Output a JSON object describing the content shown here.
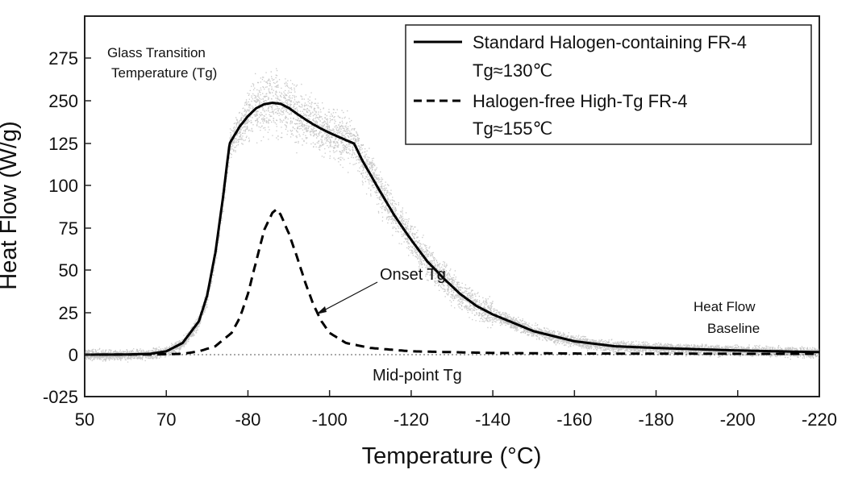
{
  "chart_data": {
    "type": "line",
    "title": "",
    "xlabel": "Temperature (°C)",
    "ylabel": "Heat Flow (W/g)",
    "x_ticks": [
      "50",
      "70",
      "-80",
      "-100",
      "-120",
      "-140",
      "-160",
      "-180",
      "-200",
      "-220"
    ],
    "y_ticks": [
      "-025",
      "0",
      "25",
      "50",
      "75",
      "100",
      "125",
      "250",
      "275"
    ],
    "grid": false,
    "legend_position": "top-right",
    "series": [
      {
        "name": "Standard Halogen-containing FR-4",
        "legend_sublabel": "Tg≈130℃",
        "style": "solid",
        "points": [
          [
            0,
            0
          ],
          [
            0.5,
            0.1
          ],
          [
            0.8,
            0.5
          ],
          [
            1.0,
            2
          ],
          [
            1.2,
            7
          ],
          [
            1.4,
            20
          ],
          [
            1.5,
            35
          ],
          [
            1.6,
            60
          ],
          [
            1.7,
            95
          ],
          [
            1.8,
            135
          ],
          [
            1.9,
            175
          ],
          [
            2.0,
            205
          ],
          [
            2.1,
            228
          ],
          [
            2.2,
            240
          ],
          [
            2.3,
            244
          ],
          [
            2.4,
            241
          ],
          [
            2.5,
            229
          ],
          [
            2.6,
            212
          ],
          [
            2.7,
            196
          ],
          [
            2.8,
            181
          ],
          [
            2.9,
            168
          ],
          [
            3.0,
            156
          ],
          [
            3.2,
            135
          ],
          [
            3.4,
            115
          ],
          [
            3.6,
            98
          ],
          [
            3.8,
            82
          ],
          [
            4.0,
            68
          ],
          [
            4.2,
            55
          ],
          [
            4.4,
            45
          ],
          [
            4.6,
            36
          ],
          [
            4.8,
            29
          ],
          [
            5.0,
            24
          ],
          [
            5.5,
            14
          ],
          [
            6.0,
            8
          ],
          [
            6.5,
            5
          ],
          [
            7.0,
            4
          ],
          [
            8.0,
            2.5
          ],
          [
            9.0,
            1.5
          ]
        ]
      },
      {
        "name": "Halogen-free High-Tg FR-4",
        "legend_sublabel": "Tg≈155℃",
        "style": "dashed",
        "points": [
          [
            0,
            0
          ],
          [
            0.8,
            0.1
          ],
          [
            1.2,
            0.5
          ],
          [
            1.4,
            2
          ],
          [
            1.6,
            5
          ],
          [
            1.8,
            13
          ],
          [
            1.9,
            22
          ],
          [
            2.0,
            36
          ],
          [
            2.1,
            55
          ],
          [
            2.2,
            74
          ],
          [
            2.3,
            84
          ],
          [
            2.35,
            86
          ],
          [
            2.4,
            83
          ],
          [
            2.5,
            72
          ],
          [
            2.6,
            58
          ],
          [
            2.7,
            43
          ],
          [
            2.8,
            30
          ],
          [
            2.9,
            20
          ],
          [
            3.0,
            13
          ],
          [
            3.2,
            7
          ],
          [
            3.5,
            4
          ],
          [
            4.0,
            2
          ],
          [
            5.0,
            1
          ],
          [
            6.0,
            0.7
          ],
          [
            7.0,
            0.6
          ],
          [
            8.0,
            0.5
          ],
          [
            9.0,
            0.5
          ]
        ]
      }
    ],
    "annotations": [
      {
        "text_lines": [
          "Glass Transition",
          "Temperature (Tg)"
        ]
      },
      {
        "text_lines": [
          "Onset Tg"
        ]
      },
      {
        "text_lines": [
          "Heat Flow",
          "Baseline"
        ]
      },
      {
        "text_lines": [
          "Mid-point Tg"
        ]
      }
    ]
  }
}
